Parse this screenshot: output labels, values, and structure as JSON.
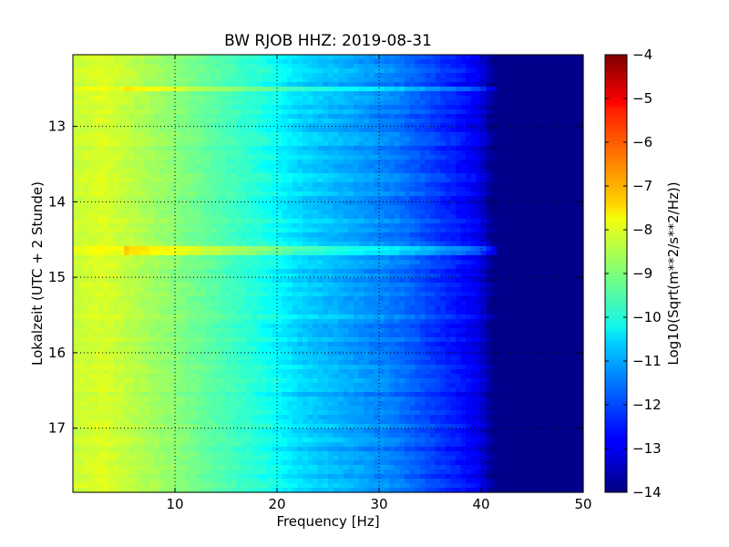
{
  "chart_data": {
    "type": "heatmap",
    "title": "BW RJOB HHZ: 2019-08-31",
    "xlabel": "Frequency [Hz]",
    "ylabel": "Lokalzeit (UTC + 2 Stunde)",
    "colorbar_label": "Log10(Sqrt(m**2/s**2/Hz))",
    "colormap": "jet",
    "xlim": [
      0,
      50
    ],
    "ylim": [
      17.85,
      12.05
    ],
    "y_inverted": true,
    "clim": [
      -14,
      -4
    ],
    "grid": true,
    "x_ticks": [
      10,
      20,
      30,
      40,
      50
    ],
    "x_tick_labels": [
      "10",
      "20",
      "30",
      "40",
      "50"
    ],
    "y_ticks": [
      13,
      14,
      15,
      16,
      17
    ],
    "y_tick_labels": [
      "13",
      "14",
      "15",
      "16",
      "17"
    ],
    "colorbar_ticks": [
      -4,
      -5,
      -6,
      -7,
      -8,
      -9,
      -10,
      -11,
      -12,
      -13,
      -14
    ],
    "colorbar_tick_labels": [
      "−4",
      "−5",
      "−6",
      "−7",
      "−8",
      "−9",
      "−10",
      "−11",
      "−12",
      "−13",
      "−14"
    ],
    "spectrum_profile": {
      "frequency_hz": [
        0,
        3,
        10,
        18,
        22,
        27,
        32,
        38,
        40,
        41,
        50
      ],
      "level_log10": [
        -8.3,
        -8.1,
        -8.9,
        -9.9,
        -10.6,
        -11.1,
        -11.6,
        -12.6,
        -13.0,
        -13.9,
        -13.9
      ]
    },
    "strong_bands": [
      {
        "time_h": 12.5,
        "level_offset": 0.7
      },
      {
        "time_h": 14.65,
        "level_offset": 1.0
      }
    ]
  }
}
